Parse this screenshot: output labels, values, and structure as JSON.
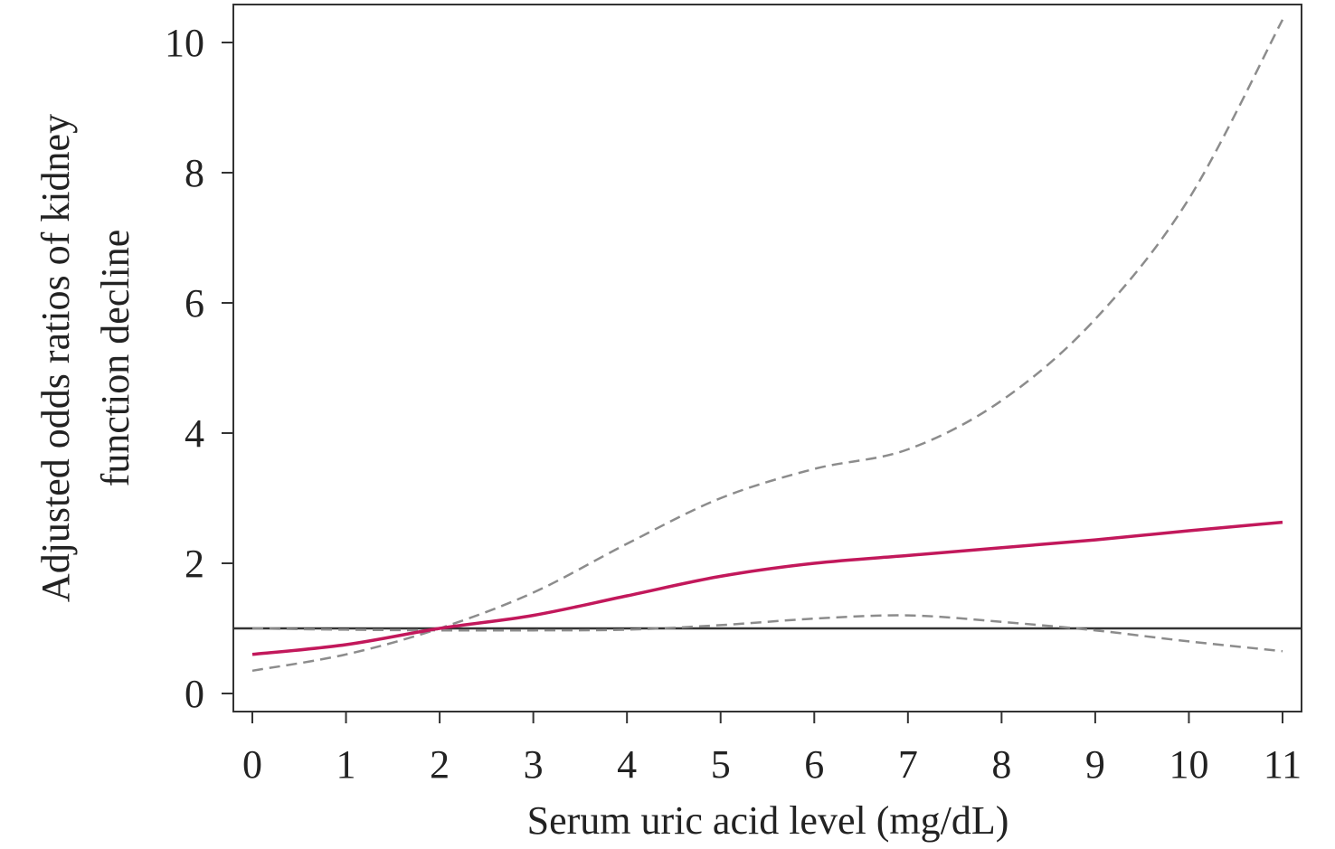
{
  "chart_data": {
    "type": "line",
    "xlabel": "Serum uric acid level (mg/dL)",
    "ylabel_lines": [
      "Adjusted odds ratios of kidney",
      "function decline"
    ],
    "xlim": [
      0,
      11
    ],
    "ylim": [
      0,
      10
    ],
    "xticks": [
      0,
      1,
      2,
      3,
      4,
      5,
      6,
      7,
      8,
      9,
      10,
      11
    ],
    "yticks": [
      0,
      2,
      4,
      6,
      8,
      10
    ],
    "reference_line": {
      "y": 1,
      "color": "#333333",
      "style": "solid"
    },
    "x": [
      0,
      1,
      2,
      3,
      4,
      5,
      6,
      7,
      8,
      9,
      10,
      11
    ],
    "series": [
      {
        "role": "odds-ratio",
        "color": "#c2185b",
        "style": "solid",
        "values": [
          0.6,
          0.75,
          1.0,
          1.2,
          1.5,
          1.8,
          2.0,
          2.12,
          2.24,
          2.36,
          2.5,
          2.63
        ]
      },
      {
        "role": "upper-ci",
        "color": "#8c8c8c",
        "style": "dashed",
        "values": [
          0.35,
          0.6,
          1.0,
          1.55,
          2.3,
          3.0,
          3.45,
          3.75,
          4.5,
          5.75,
          7.6,
          10.35
        ]
      },
      {
        "role": "lower-ci",
        "color": "#8c8c8c",
        "style": "dashed",
        "values": [
          1.0,
          0.98,
          0.97,
          0.97,
          0.98,
          1.05,
          1.15,
          1.2,
          1.1,
          0.97,
          0.8,
          0.65
        ]
      }
    ]
  }
}
